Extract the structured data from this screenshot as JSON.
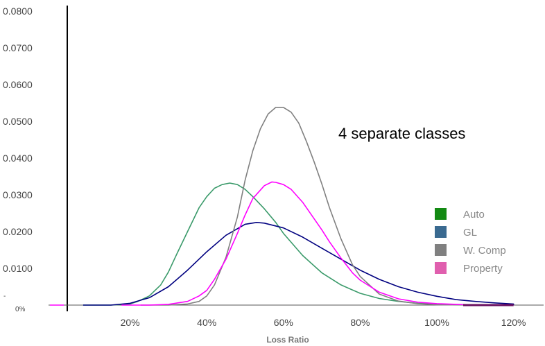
{
  "chart_data": {
    "type": "line",
    "title": "",
    "annotation": "4 separate classes",
    "xlabel": "Loss Ratio",
    "ylabel": "",
    "xlim": [
      0,
      1.25
    ],
    "ylim": [
      0,
      0.08
    ],
    "x_ticks": [
      {
        "value": 0.2,
        "label": "20%"
      },
      {
        "value": 0.4,
        "label": "40%"
      },
      {
        "value": 0.6,
        "label": "60%"
      },
      {
        "value": 0.8,
        "label": "80%"
      },
      {
        "value": 1.0,
        "label": "100%"
      },
      {
        "value": 1.2,
        "label": "120%"
      }
    ],
    "y_ticks": [
      {
        "value": 0.01,
        "label": "0.0100"
      },
      {
        "value": 0.02,
        "label": "0.0200"
      },
      {
        "value": 0.03,
        "label": "0.0300"
      },
      {
        "value": 0.04,
        "label": "0.0400"
      },
      {
        "value": 0.05,
        "label": "0.0500"
      },
      {
        "value": 0.06,
        "label": "0.0600"
      },
      {
        "value": 0.07,
        "label": "0.0700"
      },
      {
        "value": 0.08,
        "label": "0.0800"
      }
    ],
    "y_zero_label": "0%",
    "y_minor_label": "-",
    "grid": false,
    "legend_position": "right",
    "legend": [
      {
        "name": "Auto",
        "color": "#138a13"
      },
      {
        "name": "GL",
        "color": "#3a6a90"
      },
      {
        "name": "W. Comp",
        "color": "#808080"
      },
      {
        "name": "Property",
        "color": "#e05fae"
      }
    ],
    "series": [
      {
        "name": "Auto",
        "color": "#3a9a6a",
        "x": [
          0.15,
          0.2,
          0.22,
          0.25,
          0.28,
          0.3,
          0.32,
          0.35,
          0.38,
          0.4,
          0.42,
          0.44,
          0.46,
          0.48,
          0.5,
          0.52,
          0.55,
          0.58,
          0.6,
          0.65,
          0.7,
          0.75,
          0.8,
          0.85,
          0.9,
          0.95,
          1.0,
          1.05,
          1.1,
          1.2
        ],
        "y": [
          0.0,
          0.0003,
          0.001,
          0.0025,
          0.0055,
          0.009,
          0.0135,
          0.02,
          0.0265,
          0.0295,
          0.0318,
          0.0328,
          0.0332,
          0.0328,
          0.0315,
          0.0295,
          0.0262,
          0.0225,
          0.0195,
          0.0135,
          0.0088,
          0.0055,
          0.0032,
          0.0018,
          0.001,
          0.0005,
          0.0003,
          0.0001,
          5e-05,
          0.0
        ]
      },
      {
        "name": "GL",
        "color": "#000080",
        "x": [
          0.15,
          0.2,
          0.25,
          0.3,
          0.35,
          0.4,
          0.45,
          0.5,
          0.53,
          0.55,
          0.6,
          0.65,
          0.7,
          0.75,
          0.8,
          0.85,
          0.9,
          0.95,
          1.0,
          1.05,
          1.1,
          1.15,
          1.2
        ],
        "y": [
          0.0,
          0.0005,
          0.002,
          0.005,
          0.0095,
          0.0145,
          0.019,
          0.022,
          0.0225,
          0.0223,
          0.021,
          0.0185,
          0.0155,
          0.0125,
          0.0095,
          0.007,
          0.005,
          0.0035,
          0.0024,
          0.0015,
          0.001,
          0.0006,
          0.0003
        ]
      },
      {
        "name": "W. Comp",
        "color": "#808080",
        "x": [
          0.3,
          0.35,
          0.38,
          0.4,
          0.42,
          0.45,
          0.48,
          0.5,
          0.52,
          0.54,
          0.56,
          0.58,
          0.6,
          0.62,
          0.64,
          0.66,
          0.68,
          0.7,
          0.72,
          0.75,
          0.78,
          0.8,
          0.85,
          0.9,
          0.95,
          1.0,
          1.1,
          1.2
        ],
        "y": [
          0.0,
          0.0003,
          0.001,
          0.0025,
          0.0055,
          0.013,
          0.024,
          0.034,
          0.042,
          0.048,
          0.052,
          0.0538,
          0.0538,
          0.0525,
          0.0495,
          0.0445,
          0.039,
          0.033,
          0.0265,
          0.018,
          0.011,
          0.0078,
          0.003,
          0.0011,
          0.0004,
          0.0001,
          0.0,
          0.0
        ]
      },
      {
        "name": "Property",
        "color": "#ff00ff",
        "x": [
          0.25,
          0.3,
          0.35,
          0.38,
          0.4,
          0.42,
          0.45,
          0.48,
          0.5,
          0.52,
          0.55,
          0.57,
          0.58,
          0.6,
          0.62,
          0.65,
          0.68,
          0.7,
          0.72,
          0.75,
          0.78,
          0.8,
          0.85,
          0.9,
          0.95,
          1.0,
          1.05,
          1.1,
          1.2
        ],
        "y": [
          0.0,
          0.0002,
          0.001,
          0.0025,
          0.004,
          0.007,
          0.0125,
          0.0195,
          0.0245,
          0.029,
          0.0325,
          0.0335,
          0.0334,
          0.0328,
          0.0315,
          0.028,
          0.0235,
          0.0205,
          0.0172,
          0.0128,
          0.0088,
          0.0068,
          0.0035,
          0.0017,
          0.0008,
          0.0004,
          0.0002,
          0.0001,
          0.0
        ]
      }
    ]
  }
}
